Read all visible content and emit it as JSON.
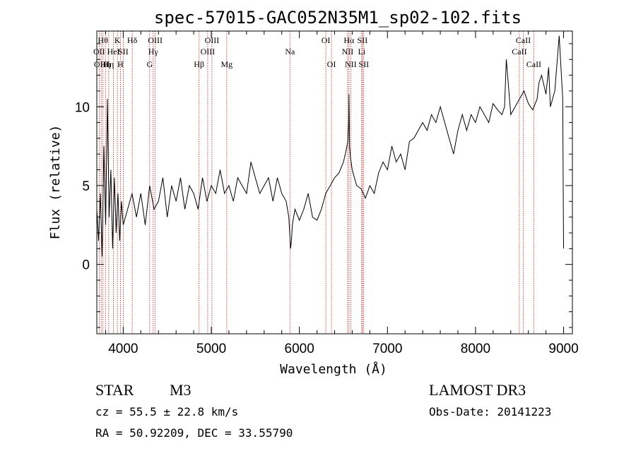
{
  "chart_data": {
    "type": "line",
    "title": "spec-57015-GAC052N35M1_sp02-102.fits",
    "xlabel": "Wavelength (Å)",
    "ylabel": "Flux (relative)",
    "xlim": [
      3700,
      9100
    ],
    "ylim": [
      -4.4,
      14.8
    ],
    "xticks": [
      4000,
      5000,
      6000,
      7000,
      8000,
      9000
    ],
    "xtick_labels": [
      "4000",
      "5000",
      "6000",
      "7000",
      "8000",
      "9000"
    ],
    "yticks": [
      0,
      5,
      10
    ],
    "ytick_labels": [
      "0",
      "5",
      "10"
    ],
    "grid": false,
    "series": [
      {
        "name": "flux",
        "x": [
          3700,
          3720,
          3740,
          3760,
          3780,
          3800,
          3820,
          3840,
          3860,
          3880,
          3900,
          3920,
          3940,
          3960,
          3980,
          4000,
          4050,
          4100,
          4150,
          4200,
          4250,
          4300,
          4350,
          4400,
          4450,
          4500,
          4550,
          4600,
          4650,
          4700,
          4750,
          4800,
          4850,
          4900,
          4950,
          5000,
          5050,
          5100,
          5150,
          5200,
          5250,
          5300,
          5350,
          5400,
          5450,
          5500,
          5550,
          5600,
          5650,
          5700,
          5750,
          5800,
          5850,
          5880,
          5900,
          5910,
          5920,
          5950,
          6000,
          6050,
          6100,
          6150,
          6200,
          6250,
          6300,
          6350,
          6400,
          6450,
          6500,
          6530,
          6550,
          6560,
          6563,
          6570,
          6580,
          6600,
          6650,
          6700,
          6750,
          6800,
          6850,
          6900,
          6950,
          7000,
          7050,
          7100,
          7150,
          7200,
          7250,
          7300,
          7350,
          7400,
          7450,
          7500,
          7550,
          7600,
          7650,
          7700,
          7750,
          7800,
          7850,
          7900,
          7950,
          8000,
          8050,
          8100,
          8150,
          8200,
          8250,
          8300,
          8330,
          8350,
          8400,
          8450,
          8500,
          8550,
          8600,
          8650,
          8700,
          8720,
          8750,
          8800,
          8830,
          8850,
          8900,
          8950,
          8990,
          9000
        ],
        "y": [
          3.5,
          1.5,
          4.5,
          0.5,
          7.5,
          2.5,
          10.5,
          3.0,
          6.0,
          1.0,
          5.5,
          2.0,
          4.5,
          1.5,
          4.0,
          2.5,
          3.5,
          4.5,
          3.0,
          4.5,
          2.5,
          5.0,
          3.5,
          4.0,
          5.5,
          3.0,
          5.0,
          4.0,
          5.5,
          3.5,
          5.0,
          4.5,
          3.5,
          5.5,
          4.0,
          5.0,
          4.5,
          6.0,
          4.5,
          5.0,
          4.0,
          5.5,
          5.0,
          4.5,
          6.5,
          5.5,
          4.5,
          5.0,
          5.5,
          4.0,
          5.5,
          4.5,
          4.0,
          3.0,
          1.0,
          1.5,
          2.5,
          3.5,
          2.8,
          3.5,
          4.5,
          3.0,
          2.8,
          3.5,
          4.5,
          5.0,
          5.5,
          5.8,
          6.5,
          7.2,
          7.8,
          9.0,
          10.8,
          7.5,
          6.8,
          6.0,
          5.0,
          4.8,
          4.2,
          5.0,
          4.5,
          5.8,
          6.5,
          6.0,
          7.5,
          6.5,
          7.0,
          6.0,
          7.8,
          8.0,
          8.5,
          9.0,
          8.5,
          9.5,
          9.0,
          10.0,
          9.0,
          8.0,
          7.0,
          8.5,
          9.5,
          8.5,
          9.5,
          9.0,
          10.0,
          9.5,
          9.0,
          10.2,
          9.8,
          9.5,
          10.0,
          13.0,
          9.5,
          10.0,
          10.5,
          11.0,
          10.2,
          9.8,
          10.5,
          11.5,
          12.0,
          10.8,
          12.5,
          10.0,
          11.0,
          14.5,
          10.5,
          1.0
        ]
      }
    ],
    "line_markers": [
      {
        "wl": 3727,
        "label": "OII",
        "row": 2
      },
      {
        "wl": 3750,
        "label": "OIII",
        "row": 3
      },
      {
        "wl": 3770,
        "label": "Hθ",
        "row": 1
      },
      {
        "wl": 3798,
        "label": "Hη",
        "row": 3
      },
      {
        "wl": 3835,
        "label": "Hη",
        "row": 3
      },
      {
        "wl": 3889,
        "label": "HeI",
        "row": 2
      },
      {
        "wl": 3934,
        "label": "K",
        "row": 1
      },
      {
        "wl": 3968,
        "label": "H",
        "row": 3
      },
      {
        "wl": 4000,
        "label": "SII",
        "row": 2
      },
      {
        "wl": 4102,
        "label": "Hδ",
        "row": 1
      },
      {
        "wl": 4300,
        "label": "G",
        "row": 3
      },
      {
        "wl": 4340,
        "label": "Hγ",
        "row": 2
      },
      {
        "wl": 4363,
        "label": "OIII",
        "row": 1
      },
      {
        "wl": 4861,
        "label": "Hβ",
        "row": 3
      },
      {
        "wl": 4959,
        "label": "OIII",
        "row": 2
      },
      {
        "wl": 5007,
        "label": "OIII",
        "row": 1
      },
      {
        "wl": 5175,
        "label": "Mg",
        "row": 3
      },
      {
        "wl": 5893,
        "label": "Na",
        "row": 2
      },
      {
        "wl": 6300,
        "label": "OI",
        "row": 1
      },
      {
        "wl": 6364,
        "label": "OI",
        "row": 3
      },
      {
        "wl": 6548,
        "label": "NII",
        "row": 2
      },
      {
        "wl": 6563,
        "label": "Hα",
        "row": 1
      },
      {
        "wl": 6583,
        "label": "NII",
        "row": 3
      },
      {
        "wl": 6708,
        "label": "Li",
        "row": 2
      },
      {
        "wl": 6716,
        "label": "SII",
        "row": 1
      },
      {
        "wl": 6731,
        "label": "SII",
        "row": 3
      },
      {
        "wl": 8498,
        "label": "CaII",
        "row": 2
      },
      {
        "wl": 8542,
        "label": "CaII",
        "row": 1
      },
      {
        "wl": 8662,
        "label": "CaII",
        "row": 3
      }
    ]
  },
  "info": {
    "object_type": "STAR",
    "subclass": "M3",
    "survey": "LAMOST DR3",
    "cz": "cz = 55.5 ± 22.8 km/s",
    "obs_date": "Obs-Date: 20141223",
    "coords": "RA =  50.92209, DEC =  33.55790"
  }
}
